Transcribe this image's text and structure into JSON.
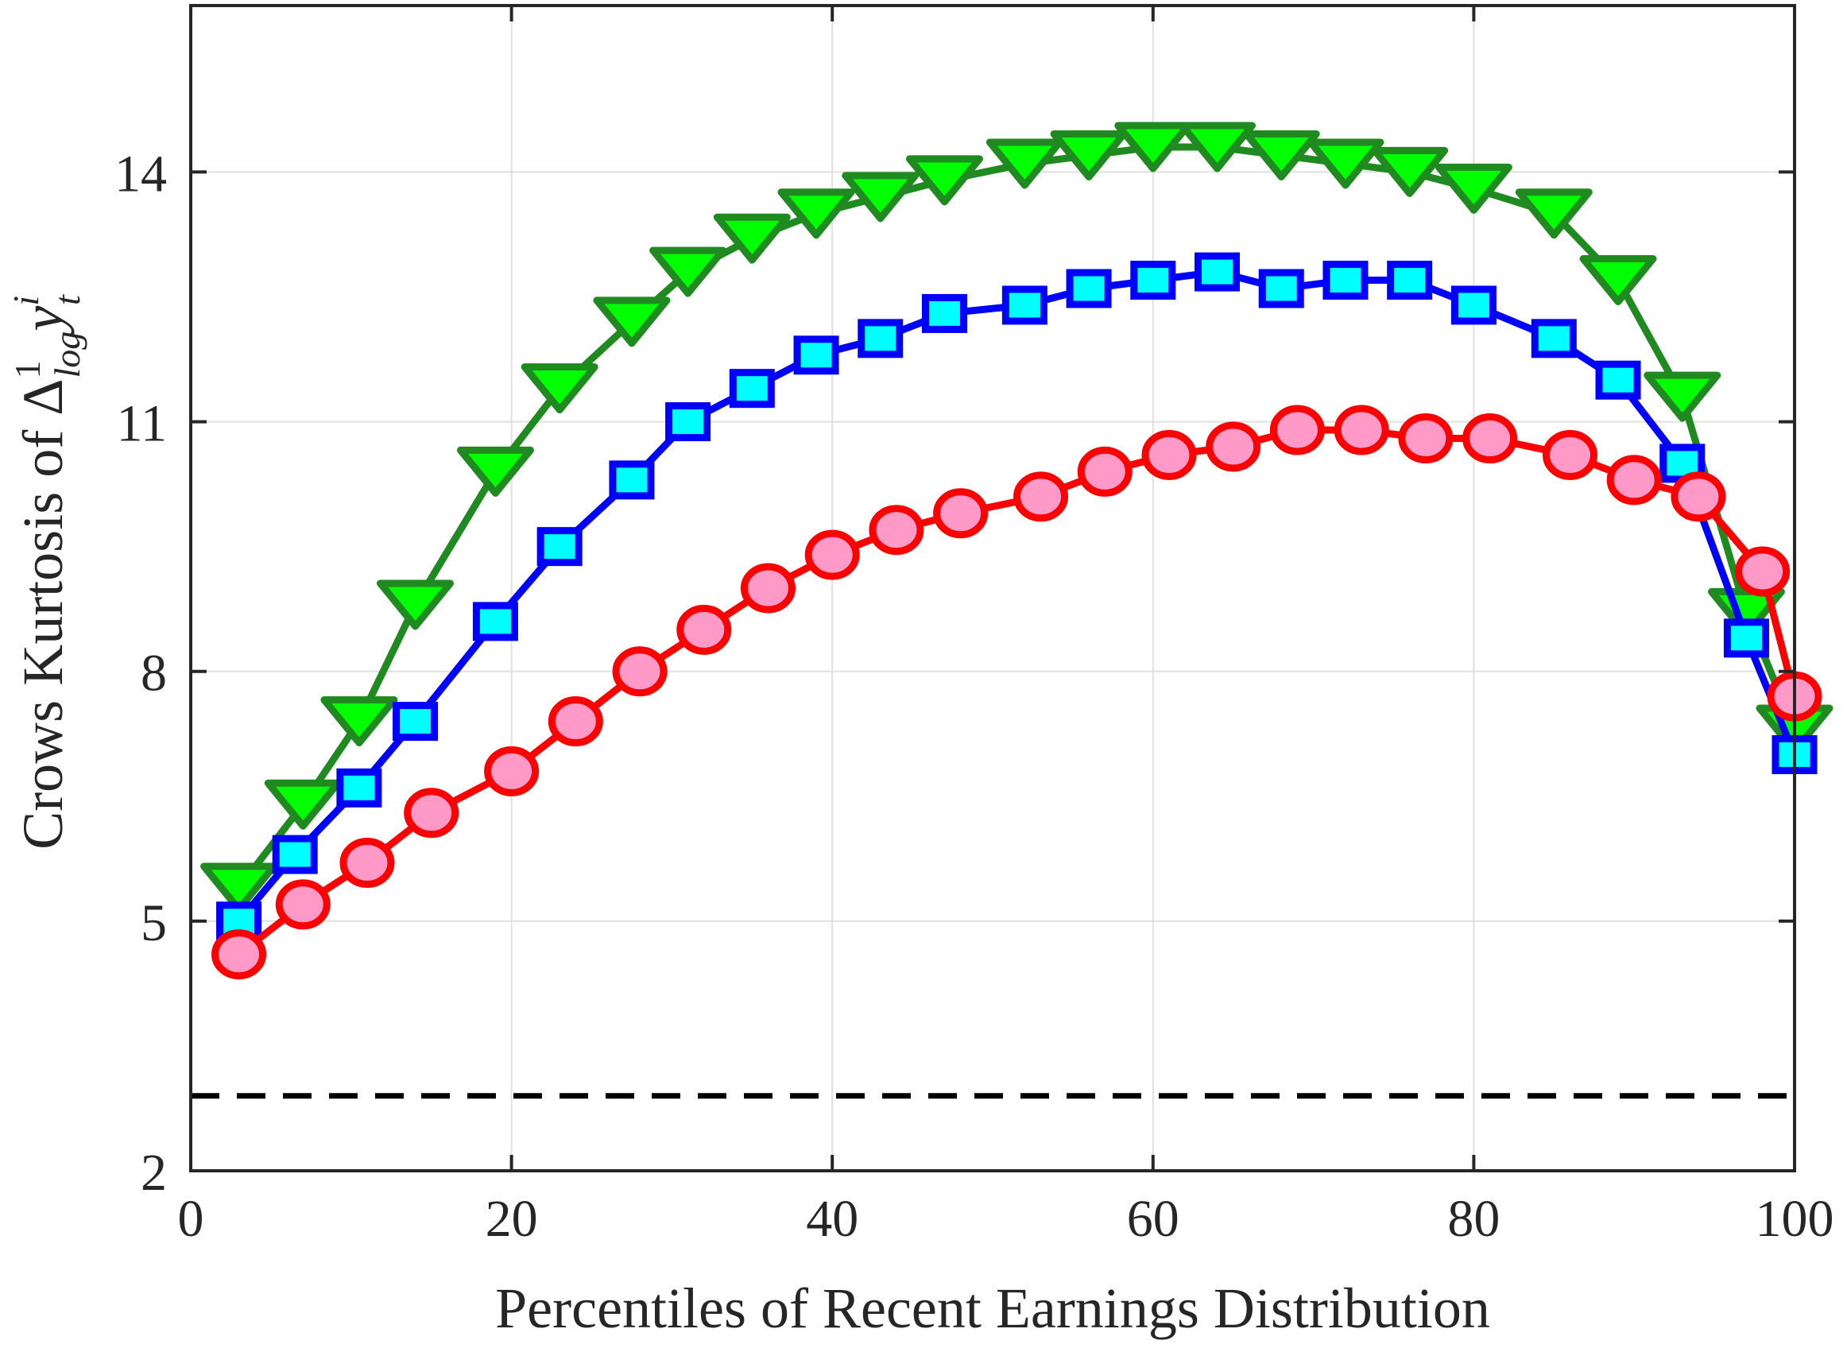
{
  "chart_data": {
    "type": "line",
    "title": "",
    "xlabel": "Percentiles of Recent Earnings Distribution",
    "ylabel": "Crows Kurtosis of Δ¹log y_t^i",
    "ylabel_parts": {
      "prefix": "Crows Kurtosis of ",
      "delta": "Δ",
      "sup": "1",
      "sub": "log",
      "var": "y",
      "var_sup": "i",
      "var_sub": "t"
    },
    "xlim": [
      0,
      100
    ],
    "ylim": [
      2,
      16
    ],
    "xticks": [
      0,
      20,
      40,
      60,
      80,
      100
    ],
    "yticks": [
      2,
      5,
      8,
      11,
      14
    ],
    "grid": true,
    "legend": null,
    "reference_line": {
      "y": 2.9,
      "style": "dashed",
      "color": "#000000"
    },
    "series": [
      {
        "name": "green-triangles",
        "marker": "triangle-down",
        "line_color": "#1f8a1f",
        "fill_color": "#00ff00",
        "x": [
          3,
          7,
          10.5,
          14,
          19,
          23,
          27.5,
          31,
          35,
          39,
          43,
          47,
          52,
          56,
          60,
          64,
          68,
          72,
          76,
          80,
          85,
          89,
          93,
          97,
          100
        ],
        "values": [
          5.4,
          6.4,
          7.4,
          8.8,
          10.4,
          11.4,
          12.2,
          12.8,
          13.2,
          13.5,
          13.7,
          13.9,
          14.1,
          14.2,
          14.3,
          14.3,
          14.2,
          14.1,
          14.0,
          13.8,
          13.5,
          12.7,
          11.3,
          8.7,
          7.3
        ]
      },
      {
        "name": "blue-squares",
        "marker": "square",
        "line_color": "#0000ff",
        "fill_color": "#00ffff",
        "x": [
          3,
          6.5,
          10.5,
          14,
          19,
          23,
          27.5,
          31,
          35,
          39,
          43,
          47,
          52,
          56,
          60,
          64,
          68,
          72,
          76,
          80,
          85,
          89,
          93,
          97,
          100
        ],
        "values": [
          5.0,
          5.8,
          6.6,
          7.4,
          8.6,
          9.5,
          10.3,
          11.0,
          11.4,
          11.8,
          12.0,
          12.3,
          12.4,
          12.6,
          12.7,
          12.8,
          12.6,
          12.7,
          12.7,
          12.4,
          12.0,
          11.5,
          10.5,
          8.4,
          7.0
        ]
      },
      {
        "name": "red-circles",
        "marker": "circle",
        "line_color": "#ff0000",
        "fill_color": "#ff99c8",
        "x": [
          3,
          7,
          11,
          15,
          20,
          24,
          28,
          32,
          36,
          40,
          44,
          48,
          53,
          57,
          61,
          65,
          69,
          73,
          77,
          81,
          86,
          90,
          94,
          98,
          100
        ],
        "values": [
          4.6,
          5.2,
          5.7,
          6.3,
          6.8,
          7.4,
          8.0,
          8.5,
          9.0,
          9.4,
          9.7,
          9.9,
          10.1,
          10.4,
          10.6,
          10.7,
          10.9,
          10.9,
          10.8,
          10.8,
          10.6,
          10.3,
          10.1,
          9.2,
          7.7
        ]
      }
    ]
  },
  "colors": {
    "axis": "#262626",
    "grid": "#e0e0e0",
    "background": "#ffffff"
  }
}
